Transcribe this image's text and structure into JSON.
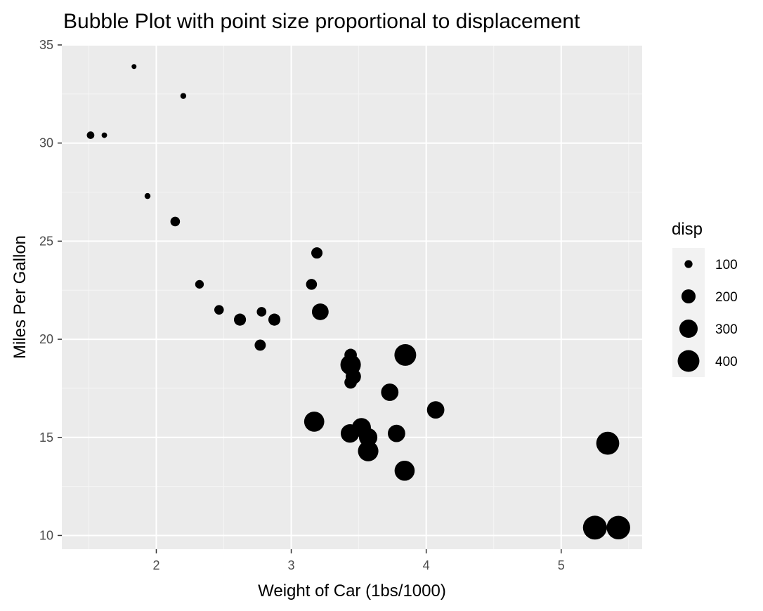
{
  "chart_data": {
    "type": "scatter",
    "title": "Bubble Plot with point size proportional to displacement",
    "xlabel": "Weight of Car (1bs/1000)",
    "ylabel": "Miles Per Gallon",
    "xlim": [
      1.3,
      5.6
    ],
    "ylim": [
      9.3,
      35.0
    ],
    "x_ticks": [
      2,
      3,
      4,
      5
    ],
    "y_ticks": [
      10,
      15,
      20,
      25,
      30,
      35
    ],
    "grid": true,
    "legend": {
      "title": "disp",
      "placement": "right",
      "entries": [
        {
          "label": "100",
          "value": 100
        },
        {
          "label": "200",
          "value": 200
        },
        {
          "label": "300",
          "value": 300
        },
        {
          "label": "400",
          "value": 400
        }
      ]
    },
    "size_variable": "disp",
    "points": [
      {
        "x": 2.62,
        "y": 21.0,
        "size": 160.0
      },
      {
        "x": 2.875,
        "y": 21.0,
        "size": 160.0
      },
      {
        "x": 2.32,
        "y": 22.8,
        "size": 108.0
      },
      {
        "x": 3.215,
        "y": 21.4,
        "size": 258.0
      },
      {
        "x": 3.44,
        "y": 18.7,
        "size": 360.0
      },
      {
        "x": 3.46,
        "y": 18.1,
        "size": 225.0
      },
      {
        "x": 3.57,
        "y": 14.3,
        "size": 360.0
      },
      {
        "x": 3.19,
        "y": 24.4,
        "size": 146.7
      },
      {
        "x": 3.15,
        "y": 22.8,
        "size": 140.8
      },
      {
        "x": 3.44,
        "y": 19.2,
        "size": 167.6
      },
      {
        "x": 3.44,
        "y": 17.8,
        "size": 167.6
      },
      {
        "x": 4.07,
        "y": 16.4,
        "size": 275.8
      },
      {
        "x": 3.73,
        "y": 17.3,
        "size": 275.8
      },
      {
        "x": 3.78,
        "y": 15.2,
        "size": 275.8
      },
      {
        "x": 5.25,
        "y": 10.4,
        "size": 472.0
      },
      {
        "x": 5.424,
        "y": 10.4,
        "size": 460.0
      },
      {
        "x": 5.345,
        "y": 14.7,
        "size": 440.0
      },
      {
        "x": 2.2,
        "y": 32.4,
        "size": 78.7
      },
      {
        "x": 1.615,
        "y": 30.4,
        "size": 75.7
      },
      {
        "x": 1.835,
        "y": 33.9,
        "size": 71.1
      },
      {
        "x": 2.465,
        "y": 21.5,
        "size": 120.1
      },
      {
        "x": 3.52,
        "y": 15.5,
        "size": 318.0
      },
      {
        "x": 3.435,
        "y": 15.2,
        "size": 304.0
      },
      {
        "x": 3.84,
        "y": 13.3,
        "size": 350.0
      },
      {
        "x": 3.845,
        "y": 19.2,
        "size": 400.0
      },
      {
        "x": 1.935,
        "y": 27.3,
        "size": 79.0
      },
      {
        "x": 2.14,
        "y": 26.0,
        "size": 120.3
      },
      {
        "x": 1.513,
        "y": 30.4,
        "size": 95.1
      },
      {
        "x": 3.17,
        "y": 15.8,
        "size": 351.0
      },
      {
        "x": 2.77,
        "y": 19.7,
        "size": 145.0
      },
      {
        "x": 3.57,
        "y": 15.0,
        "size": 301.0
      },
      {
        "x": 2.78,
        "y": 21.4,
        "size": 121.0
      }
    ],
    "colors": {
      "panel_background": "#ebebeb",
      "grid_major": "#ffffff",
      "grid_minor": "#f5f5f5",
      "point": "#000000",
      "tick_label": "#4d4d4d",
      "tick_mark": "#333333",
      "legend_key_background": "#f2f2f2"
    }
  }
}
